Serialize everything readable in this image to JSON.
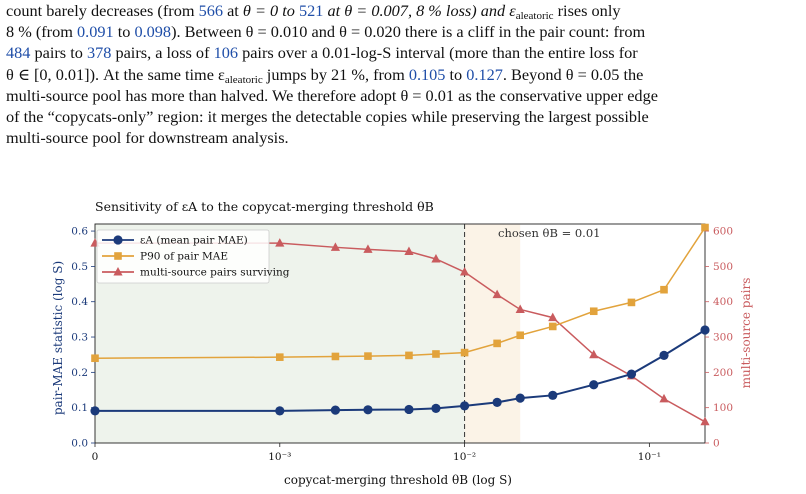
{
  "paragraph": {
    "l1": {
      "a": "count barely decreases (from ",
      "v1": "566",
      "b": " at ",
      "c": "θ = 0 to ",
      "v2": "521",
      "d": " at θ = 0.007, 8 % loss) and ε",
      "sub": "aleatoric",
      "e": " rises only"
    },
    "l2": {
      "a": "8 % (from ",
      "v1": "0.091",
      "b": " to ",
      "v2": "0.098",
      "c": "). Between θ = 0.010 and θ = 0.020 there is a cliff in the pair count: from"
    },
    "l3": {
      "v1": "484",
      "a": " pairs to ",
      "v2": "378",
      "b": " pairs, a loss of ",
      "v3": "106",
      "c": " pairs over a 0.01-log-S interval (more than the entire loss for"
    },
    "l4": {
      "a": "θ ∈ [0, 0.01]). At the same time ε",
      "sub": "aleatoric",
      "b": " jumps by 21 %, from ",
      "v1": "0.105",
      "c": " to ",
      "v2": "0.127",
      "d": ". Beyond θ = 0.05 the"
    },
    "l5": "multi-source pool has more than halved. We therefore adopt θ = 0.01 as the conservative upper edge",
    "l6": "of the “copycats-only” region: it merges the detectable copies while preserving the largest possible",
    "l7": "multi-source pool for downstream analysis."
  },
  "chart_data": {
    "type": "line",
    "title": "Sensitivity of εA to the copycat-merging threshold θB",
    "xlabel": "copycat-merging threshold θB (log S)",
    "ylabel_left": "pair-MAE statistic (log S)",
    "ylabel_right": "multi-source pairs",
    "x_scale": "symlog",
    "x_ticks": [
      "0",
      "10⁻³",
      "10⁻²",
      "10⁻¹"
    ],
    "ylim_left": [
      0.0,
      0.62
    ],
    "y_ticks_left": [
      "0.0",
      "0.1",
      "0.2",
      "0.3",
      "0.4",
      "0.5",
      "0.6"
    ],
    "ylim_right": [
      0,
      620
    ],
    "y_ticks_right": [
      "0",
      "100",
      "200",
      "300",
      "400",
      "500",
      "600"
    ],
    "annotation": "chosen θB = 0.01",
    "chosen_threshold": 0.01,
    "shaded_regions": [
      {
        "from": 0,
        "to": 0.01,
        "color": "#eef3ec"
      },
      {
        "from": 0.01,
        "to": 0.02,
        "color": "#fbf3e7"
      }
    ],
    "x": [
      0,
      0.001,
      0.002,
      0.003,
      0.005,
      0.007,
      0.01,
      0.015,
      0.02,
      0.03,
      0.05,
      0.08,
      0.12,
      0.2
    ],
    "series": [
      {
        "name": "εA (mean pair MAE)",
        "axis": "left",
        "color": "#1b3a7a",
        "marker": "circle",
        "values": [
          0.091,
          0.091,
          0.093,
          0.094,
          0.095,
          0.098,
          0.105,
          0.115,
          0.127,
          0.135,
          0.165,
          0.195,
          0.248,
          0.32
        ]
      },
      {
        "name": "P90 of pair MAE",
        "axis": "left",
        "color": "#e2a33c",
        "marker": "square",
        "values": [
          0.24,
          0.243,
          0.245,
          0.246,
          0.248,
          0.252,
          0.256,
          0.282,
          0.305,
          0.33,
          0.373,
          0.398,
          0.434,
          0.61
        ]
      },
      {
        "name": "multi-source pairs surviving",
        "axis": "right",
        "color": "#c95b5e",
        "marker": "triangle",
        "values": [
          566,
          566,
          554,
          548,
          542,
          521,
          484,
          420,
          378,
          355,
          250,
          190,
          125,
          60
        ]
      }
    ],
    "legend_position": "upper-left"
  }
}
